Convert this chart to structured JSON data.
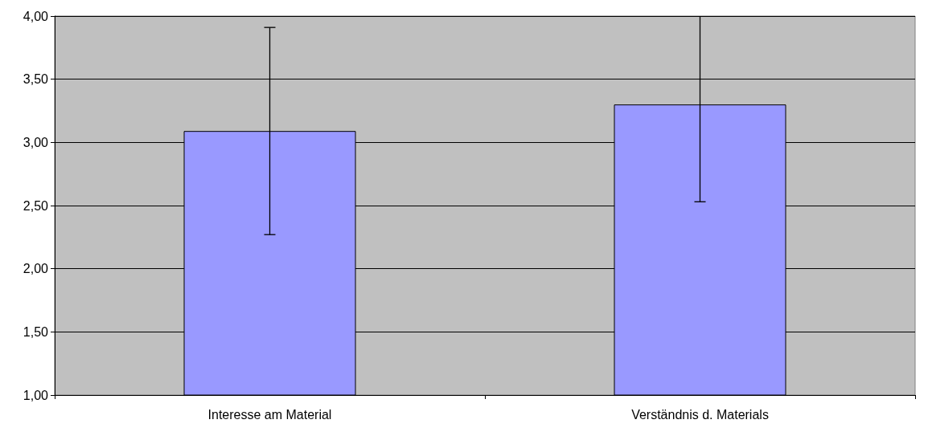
{
  "chart_data": {
    "type": "bar",
    "categories": [
      "Interesse am Material",
      "Verständnis d. Materials"
    ],
    "values": [
      3.09,
      3.3
    ],
    "errors": [
      [
        2.27,
        3.91
      ],
      [
        2.53,
        4.0
      ]
    ],
    "color": "#9999ff",
    "ylim": [
      1,
      4
    ],
    "yticks": [
      {
        "value": 1,
        "label": "1,00"
      },
      {
        "value": 1.5,
        "label": "1,50"
      },
      {
        "value": 2,
        "label": "2,00"
      },
      {
        "value": 2.5,
        "label": "2,50"
      },
      {
        "value": 3,
        "label": "3,00"
      },
      {
        "value": 3.5,
        "label": "3,50"
      },
      {
        "value": 4,
        "label": "4,00"
      }
    ],
    "grid": "y"
  }
}
